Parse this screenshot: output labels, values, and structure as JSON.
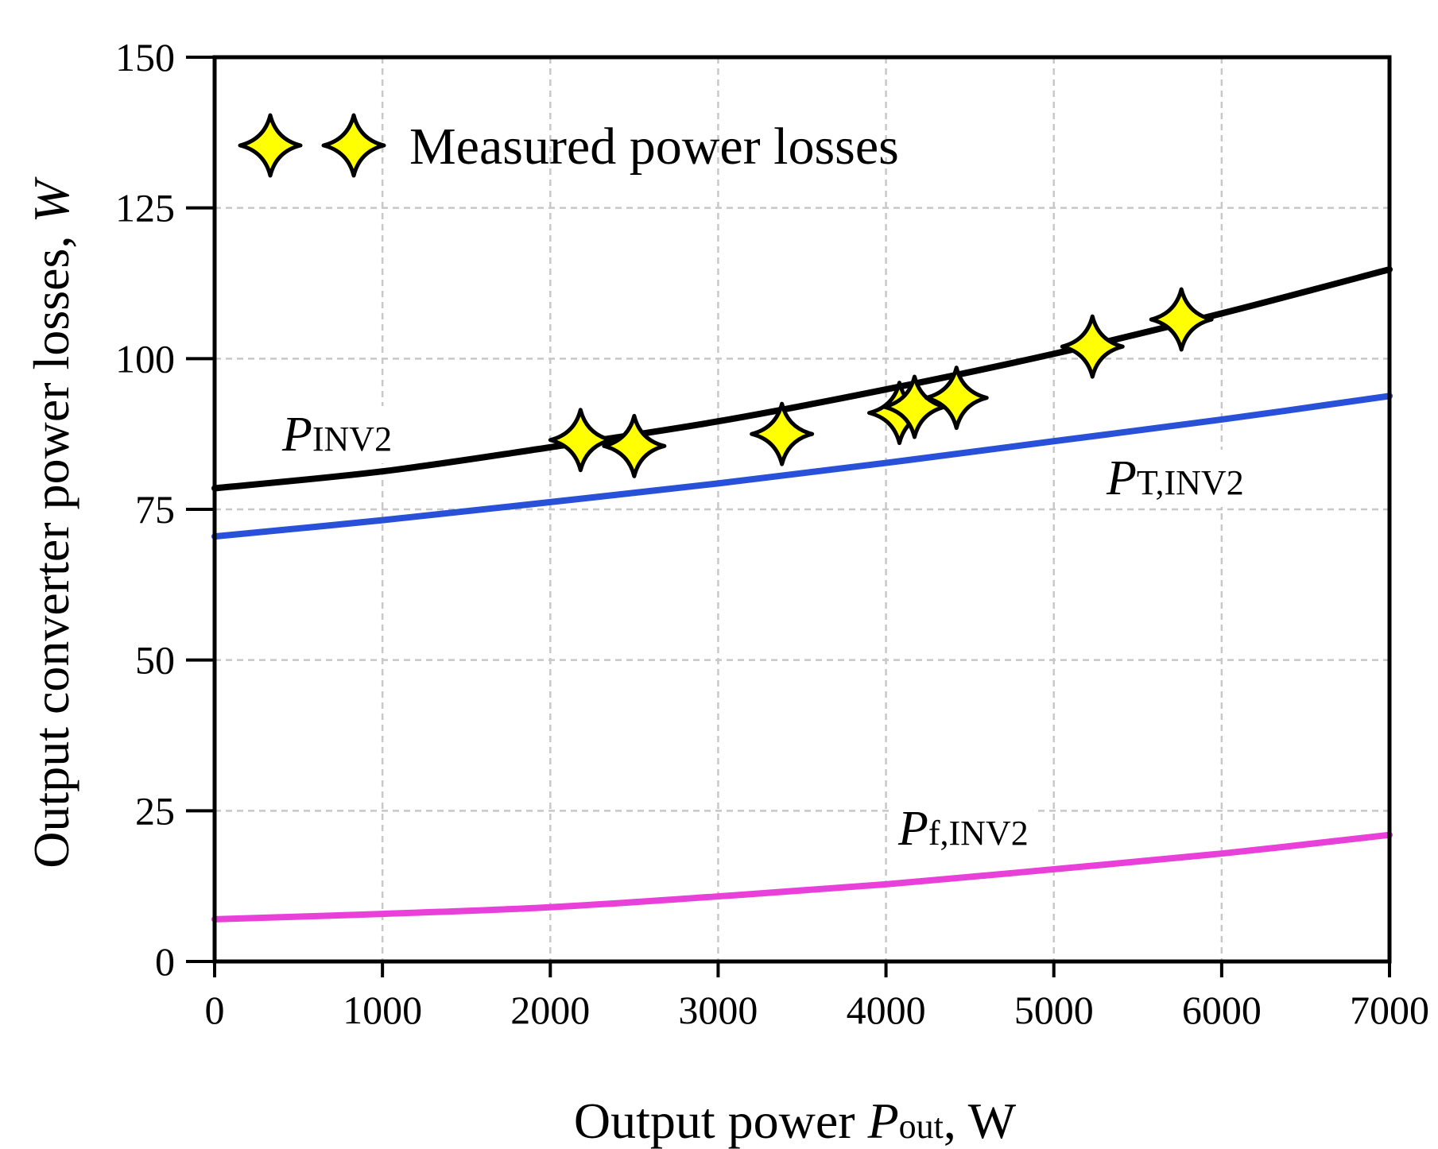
{
  "chart_data": {
    "type": "line",
    "title": "",
    "xlabel": {
      "prefix": "Output power ",
      "symbol": "P",
      "subscript": "out",
      "suffix": ", W"
    },
    "ylabel": {
      "main": "Output converter power losses, ",
      "unit": "W"
    },
    "xlim": [
      0,
      7000
    ],
    "ylim": [
      0,
      150
    ],
    "x_ticks": [
      0,
      1000,
      2000,
      3000,
      4000,
      5000,
      6000,
      7000
    ],
    "x_tick_labels": [
      "0",
      "1000",
      "2000",
      "3000",
      "4000",
      "5000",
      "6000",
      "7000"
    ],
    "y_ticks": [
      0,
      25,
      50,
      75,
      100,
      125,
      150
    ],
    "y_tick_labels": [
      "0",
      "25",
      "50",
      "75",
      "100",
      "125",
      "150"
    ],
    "grid": true,
    "legend": {
      "position": "top-left",
      "label": "Measured power losses"
    },
    "series": [
      {
        "name": "P_INV2",
        "label_symbol": "P",
        "label_sub": "INV2",
        "color": "#000000",
        "x": [
          0,
          1000,
          2000,
          3000,
          4000,
          5000,
          6000,
          7000
        ],
        "y": [
          78.5,
          81.3,
          85.3,
          89.6,
          94.9,
          100.8,
          107.5,
          114.8
        ]
      },
      {
        "name": "P_T,INV2",
        "label_symbol": "P",
        "label_sub": "T,INV2",
        "color": "#2850d8",
        "x": [
          0,
          1000,
          2000,
          3000,
          4000,
          5000,
          6000,
          7000
        ],
        "y": [
          70.5,
          73.2,
          76.2,
          79.3,
          82.7,
          86.3,
          89.9,
          93.8
        ]
      },
      {
        "name": "P_f,INV2",
        "label_symbol": "P",
        "label_sub": "f,INV2",
        "color": "#e840d8",
        "x": [
          0,
          1000,
          2000,
          3000,
          4000,
          5000,
          6000,
          7000
        ],
        "y": [
          7.0,
          7.9,
          9.0,
          10.8,
          12.8,
          15.3,
          17.9,
          21.0
        ]
      }
    ],
    "measured": {
      "name": "Measured power losses",
      "marker": "four-point star",
      "color": "#ffff00",
      "x": [
        2180,
        2500,
        3380,
        4080,
        4170,
        4420,
        5230,
        5760
      ],
      "y": [
        86.5,
        85.5,
        87.5,
        91.0,
        92.0,
        93.5,
        102.0,
        106.5
      ]
    }
  }
}
